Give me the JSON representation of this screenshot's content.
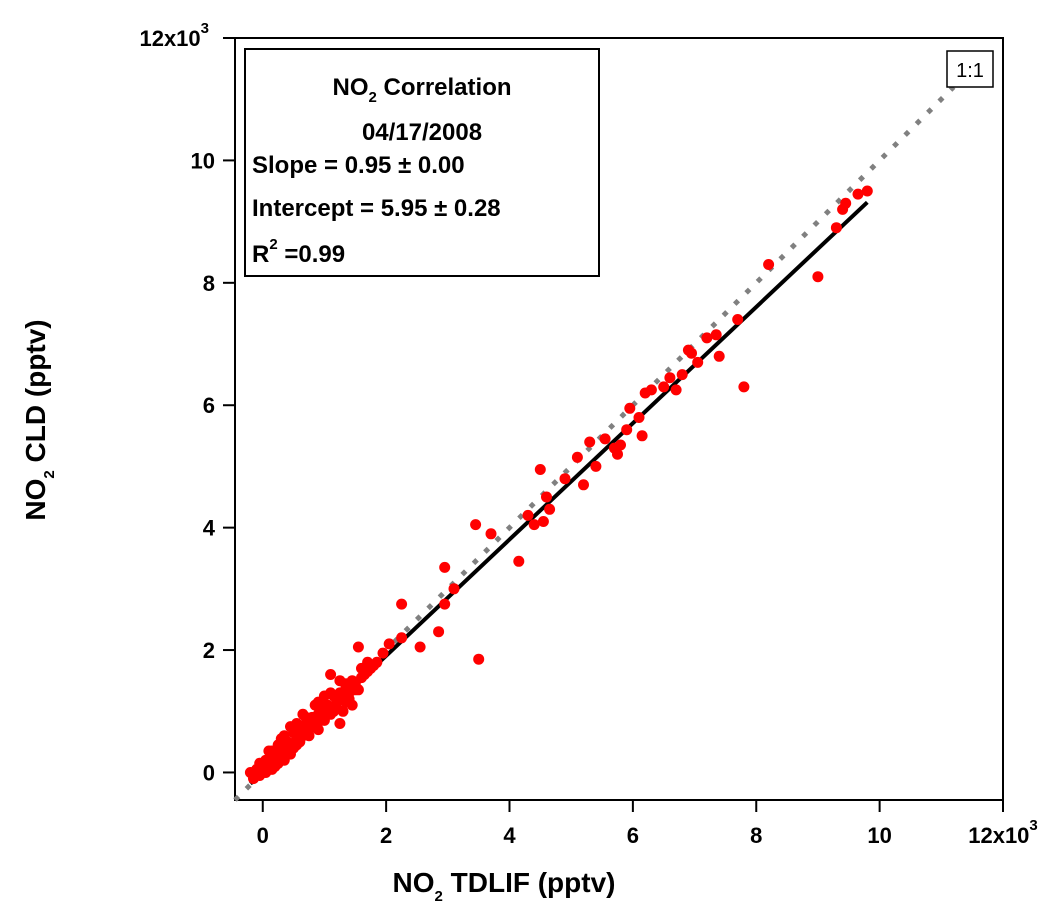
{
  "chart_data": {
    "type": "scatter",
    "xlabel": {
      "prefix": "NO",
      "sub": "2",
      "suffix": " TDLIF (pptv)"
    },
    "ylabel": {
      "prefix": "NO",
      "sub": "2",
      "suffix": " CLD (pptv)"
    },
    "xlim": [
      -450,
      12000
    ],
    "ylim": [
      -450,
      12000
    ],
    "x_ticks": [
      {
        "value": 0,
        "label": "0"
      },
      {
        "value": 2000,
        "label": "2"
      },
      {
        "value": 4000,
        "label": "4"
      },
      {
        "value": 6000,
        "label": "6"
      },
      {
        "value": 8000,
        "label": "8"
      },
      {
        "value": 10000,
        "label": "10"
      },
      {
        "value": 12000,
        "label": "12x10",
        "sup": "3"
      }
    ],
    "y_ticks": [
      {
        "value": 0,
        "label": "0"
      },
      {
        "value": 2000,
        "label": "2"
      },
      {
        "value": 4000,
        "label": "4"
      },
      {
        "value": 6000,
        "label": "6"
      },
      {
        "value": 8000,
        "label": "8"
      },
      {
        "value": 10000,
        "label": "10"
      },
      {
        "value": 12000,
        "label": "12x10",
        "sup": "3"
      }
    ],
    "legend_box": {
      "title_prefix": "NO",
      "title_sub": "2",
      "title_suffix": " Correlation",
      "date": "04/17/2008",
      "slope": "Slope = 0.95 ± 0.00",
      "intercept": "Intercept = 5.95 ± 0.28",
      "r2_prefix": "R",
      "r2_sup": "2",
      "r2_suffix": " =0.99",
      "placement": "top-left"
    },
    "one_to_one_label": "1:1",
    "fit_line": {
      "slope": 0.95,
      "intercept": 5.95,
      "x_range": [
        -200,
        9800
      ],
      "color": "#000000"
    },
    "one_to_one_line": {
      "x_range": [
        -450,
        11200
      ],
      "color": "#808080",
      "style": "dotted"
    },
    "series": [
      {
        "color": "#ff0000",
        "points": [
          [
            9800,
            9500
          ],
          [
            9650,
            9450
          ],
          [
            9450,
            9300
          ],
          [
            9400,
            9200
          ],
          [
            9300,
            8900
          ],
          [
            9000,
            8100
          ],
          [
            8200,
            8300
          ],
          [
            7800,
            6300
          ],
          [
            7700,
            7400
          ],
          [
            7400,
            6800
          ],
          [
            7350,
            7150
          ],
          [
            7200,
            7100
          ],
          [
            7050,
            6700
          ],
          [
            6950,
            6850
          ],
          [
            6900,
            6900
          ],
          [
            6800,
            6500
          ],
          [
            6700,
            6250
          ],
          [
            6600,
            6450
          ],
          [
            6500,
            6300
          ],
          [
            6300,
            6250
          ],
          [
            6200,
            6200
          ],
          [
            6150,
            5500
          ],
          [
            6100,
            5800
          ],
          [
            5950,
            5950
          ],
          [
            5900,
            5600
          ],
          [
            5800,
            5350
          ],
          [
            5750,
            5200
          ],
          [
            5700,
            5300
          ],
          [
            5550,
            5450
          ],
          [
            5400,
            5000
          ],
          [
            5300,
            5400
          ],
          [
            5200,
            4700
          ],
          [
            5100,
            5150
          ],
          [
            4900,
            4800
          ],
          [
            4650,
            4300
          ],
          [
            4600,
            4500
          ],
          [
            4550,
            4100
          ],
          [
            4500,
            4950
          ],
          [
            4400,
            4050
          ],
          [
            4300,
            4200
          ],
          [
            4150,
            3450
          ],
          [
            3700,
            3900
          ],
          [
            3500,
            1850
          ],
          [
            3450,
            4050
          ],
          [
            3100,
            3000
          ],
          [
            2950,
            2750
          ],
          [
            2950,
            3350
          ],
          [
            2850,
            2300
          ],
          [
            2550,
            2050
          ],
          [
            2250,
            2750
          ],
          [
            2250,
            2200
          ],
          [
            2050,
            2100
          ],
          [
            1950,
            1950
          ],
          [
            1850,
            1800
          ],
          [
            1800,
            1750
          ],
          [
            1750,
            1700
          ],
          [
            1700,
            1650
          ],
          [
            1600,
            1550
          ],
          [
            1550,
            2050
          ],
          [
            1500,
            1350
          ],
          [
            1450,
            1100
          ],
          [
            1400,
            1200
          ],
          [
            1350,
            1450
          ],
          [
            1300,
            1000
          ],
          [
            1250,
            1300
          ],
          [
            1250,
            800
          ],
          [
            1200,
            1150
          ],
          [
            1150,
            1250
          ],
          [
            1100,
            950
          ],
          [
            1100,
            1600
          ],
          [
            1050,
            1100
          ],
          [
            1000,
            850
          ],
          [
            1000,
            1250
          ],
          [
            950,
            1050
          ],
          [
            900,
            700
          ],
          [
            900,
            950
          ],
          [
            850,
            1100
          ],
          [
            800,
            750
          ],
          [
            800,
            900
          ],
          [
            750,
            600
          ],
          [
            700,
            800
          ],
          [
            700,
            650
          ],
          [
            650,
            950
          ],
          [
            600,
            500
          ],
          [
            600,
            700
          ],
          [
            550,
            550
          ],
          [
            500,
            400
          ],
          [
            500,
            650
          ],
          [
            450,
            750
          ],
          [
            450,
            300
          ],
          [
            400,
            500
          ],
          [
            400,
            350
          ],
          [
            350,
            200
          ],
          [
            350,
            600
          ],
          [
            300,
            400
          ],
          [
            300,
            250
          ],
          [
            250,
            150
          ],
          [
            250,
            450
          ],
          [
            200,
            300
          ],
          [
            200,
            100
          ],
          [
            150,
            200
          ],
          [
            150,
            50
          ],
          [
            100,
            100
          ],
          [
            100,
            350
          ],
          [
            50,
            0
          ],
          [
            50,
            200
          ],
          [
            0,
            0
          ],
          [
            0,
            100
          ],
          [
            -50,
            -50
          ],
          [
            -50,
            150
          ],
          [
            -100,
            50
          ],
          [
            -150,
            -100
          ],
          [
            -200,
            0
          ],
          [
            1350,
            1400
          ],
          [
            1500,
            1450
          ],
          [
            1650,
            1600
          ],
          [
            1150,
            1000
          ],
          [
            950,
            850
          ],
          [
            750,
            700
          ],
          [
            550,
            450
          ],
          [
            1300,
            1250
          ],
          [
            1450,
            1500
          ],
          [
            1050,
            1000
          ],
          [
            850,
            800
          ],
          [
            650,
            600
          ],
          [
            450,
            450
          ],
          [
            1700,
            1800
          ],
          [
            1600,
            1700
          ],
          [
            1550,
            1350
          ],
          [
            1400,
            1300
          ],
          [
            1200,
            1050
          ],
          [
            1000,
            1000
          ],
          [
            800,
            850
          ],
          [
            600,
            650
          ],
          [
            400,
            400
          ],
          [
            250,
            250
          ],
          [
            1250,
            1500
          ],
          [
            1100,
            1300
          ],
          [
            900,
            1150
          ],
          [
            1350,
            1150
          ],
          [
            700,
            900
          ],
          [
            550,
            800
          ],
          [
            300,
            550
          ],
          [
            150,
            350
          ]
        ]
      }
    ]
  }
}
